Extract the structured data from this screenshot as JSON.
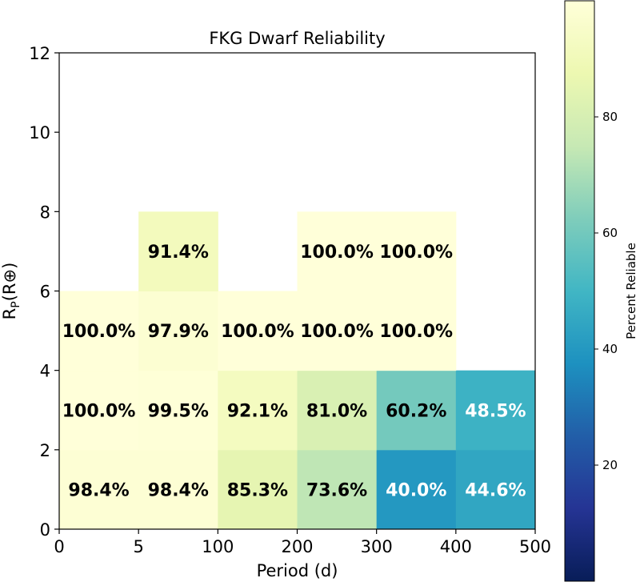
{
  "chart_data": {
    "type": "heatmap",
    "title": "FKG Dwarf Reliability",
    "xlabel": "Period (d)",
    "ylabel_main": "R",
    "ylabel_sub": "P",
    "ylabel_rest": "(R⊕)",
    "x_bins": [
      "0",
      "5",
      "100",
      "200",
      "300",
      "400",
      "500"
    ],
    "y_ticks": [
      "0",
      "2",
      "4",
      "6",
      "8",
      "10",
      "12"
    ],
    "ylim": [
      0,
      12
    ],
    "cells": [
      {
        "col": 0,
        "row": 0,
        "value": 98.4,
        "label": "98.4%"
      },
      {
        "col": 1,
        "row": 0,
        "value": 98.4,
        "label": "98.4%"
      },
      {
        "col": 2,
        "row": 0,
        "value": 85.3,
        "label": "85.3%"
      },
      {
        "col": 3,
        "row": 0,
        "value": 73.6,
        "label": "73.6%"
      },
      {
        "col": 4,
        "row": 0,
        "value": 40.0,
        "label": "40.0%"
      },
      {
        "col": 5,
        "row": 0,
        "value": 44.6,
        "label": "44.6%"
      },
      {
        "col": 0,
        "row": 1,
        "value": 100.0,
        "label": "100.0%"
      },
      {
        "col": 1,
        "row": 1,
        "value": 99.5,
        "label": "99.5%"
      },
      {
        "col": 2,
        "row": 1,
        "value": 92.1,
        "label": "92.1%"
      },
      {
        "col": 3,
        "row": 1,
        "value": 81.0,
        "label": "81.0%"
      },
      {
        "col": 4,
        "row": 1,
        "value": 60.2,
        "label": "60.2%"
      },
      {
        "col": 5,
        "row": 1,
        "value": 48.5,
        "label": "48.5%"
      },
      {
        "col": 0,
        "row": 2,
        "value": 100.0,
        "label": "100.0%"
      },
      {
        "col": 1,
        "row": 2,
        "value": 97.9,
        "label": "97.9%"
      },
      {
        "col": 2,
        "row": 2,
        "value": 100.0,
        "label": "100.0%"
      },
      {
        "col": 3,
        "row": 2,
        "value": 100.0,
        "label": "100.0%"
      },
      {
        "col": 4,
        "row": 2,
        "value": 100.0,
        "label": "100.0%"
      },
      {
        "col": 1,
        "row": 3,
        "value": 91.4,
        "label": "91.4%"
      },
      {
        "col": 3,
        "row": 3,
        "value": 100.0,
        "label": "100.0%"
      },
      {
        "col": 4,
        "row": 3,
        "value": 100.0,
        "label": "100.0%"
      }
    ],
    "colorbar": {
      "label": "Percent Reliable",
      "ticks": [
        "20",
        "40",
        "60",
        "80"
      ],
      "range": [
        0,
        100
      ],
      "colormap": "YlGnBu"
    },
    "grid": false
  }
}
